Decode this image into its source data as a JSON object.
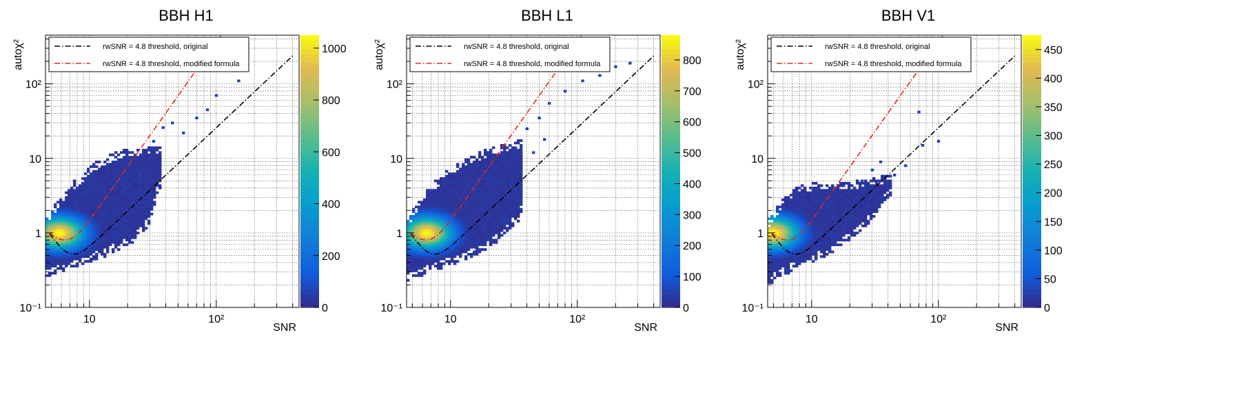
{
  "chart_data": [
    {
      "type": "heatmap",
      "title": "BBH H1",
      "xlabel": "SNR",
      "ylabel": "autoχ²",
      "x_scale": "log",
      "y_scale": "log",
      "xlim": [
        4.5,
        450
      ],
      "ylim": [
        0.1,
        450
      ],
      "x_ticks": [
        "10",
        "10²"
      ],
      "y_ticks": [
        "10⁻¹",
        "1",
        "10",
        "10²"
      ],
      "grid": true,
      "colorbar": {
        "min": 0,
        "max": 1050,
        "ticks": [
          "0",
          "200",
          "400",
          "600",
          "800",
          "1000"
        ]
      },
      "legend": {
        "placement": "top",
        "entries": [
          {
            "label": "rwSNR = 4.8 threshold, original",
            "color": "#000000",
            "style": "dash-dot"
          },
          {
            "label": "rwSNR = 4.8 threshold, modified formula",
            "color": "#e8261c",
            "style": "dash-dot"
          }
        ]
      },
      "density": {
        "peak": {
          "snr": 5.8,
          "autochi2": 1.0,
          "count": 1050
        },
        "upper_envelope": [
          [
            4.5,
            1.5
          ],
          [
            6,
            3.3
          ],
          [
            8,
            5.5
          ],
          [
            12,
            10
          ],
          [
            18,
            13
          ],
          [
            25,
            14
          ],
          [
            35,
            15
          ]
        ],
        "lower_envelope": [
          [
            4.5,
            0.25
          ],
          [
            8,
            0.35
          ],
          [
            14,
            0.5
          ],
          [
            22,
            0.75
          ],
          [
            30,
            1.3
          ],
          [
            35,
            4
          ]
        ],
        "outliers": [
          [
            30,
            14
          ],
          [
            32,
            17
          ],
          [
            38,
            26
          ],
          [
            45,
            30
          ],
          [
            55,
            22
          ],
          [
            70,
            35
          ],
          [
            85,
            45
          ],
          [
            100,
            70
          ],
          [
            150,
            110
          ],
          [
            25,
            6
          ],
          [
            20,
            4
          ]
        ]
      }
    },
    {
      "type": "heatmap",
      "title": "BBH L1",
      "xlabel": "SNR",
      "ylabel": "autoχ²",
      "x_scale": "log",
      "y_scale": "log",
      "xlim": [
        4.5,
        450
      ],
      "ylim": [
        0.1,
        450
      ],
      "x_ticks": [
        "10",
        "10²"
      ],
      "y_ticks": [
        "10⁻¹",
        "1",
        "10",
        "10²"
      ],
      "grid": true,
      "colorbar": {
        "min": 0,
        "max": 880,
        "ticks": [
          "0",
          "100",
          "200",
          "300",
          "400",
          "500",
          "600",
          "700",
          "800"
        ]
      },
      "legend": {
        "placement": "top",
        "entries": [
          {
            "label": "rwSNR = 4.8 threshold, original",
            "color": "#000000",
            "style": "dash-dot"
          },
          {
            "label": "rwSNR = 4.8 threshold, modified formula",
            "color": "#e8261c",
            "style": "dash-dot"
          }
        ]
      },
      "density": {
        "peak": {
          "snr": 6.5,
          "autochi2": 1.0,
          "count": 880
        },
        "upper_envelope": [
          [
            4.5,
            1.5
          ],
          [
            6,
            3.3
          ],
          [
            8,
            5.5
          ],
          [
            12,
            9.5
          ],
          [
            18,
            13
          ],
          [
            25,
            15
          ],
          [
            35,
            18
          ]
        ],
        "lower_envelope": [
          [
            4.5,
            0.22
          ],
          [
            8,
            0.32
          ],
          [
            14,
            0.45
          ],
          [
            22,
            0.7
          ],
          [
            35,
            1.5
          ],
          [
            40,
            4
          ]
        ],
        "outliers": [
          [
            40,
            25
          ],
          [
            50,
            35
          ],
          [
            60,
            55
          ],
          [
            80,
            80
          ],
          [
            110,
            110
          ],
          [
            150,
            130
          ],
          [
            200,
            170
          ],
          [
            260,
            190
          ],
          [
            45,
            12
          ],
          [
            55,
            18
          ]
        ]
      }
    },
    {
      "type": "heatmap",
      "title": "BBH V1",
      "xlabel": "SNR",
      "ylabel": "autoχ²",
      "x_scale": "log",
      "y_scale": "log",
      "xlim": [
        4.5,
        450
      ],
      "ylim": [
        0.1,
        450
      ],
      "x_ticks": [
        "10",
        "10²"
      ],
      "y_ticks": [
        "10⁻¹",
        "1",
        "10",
        "10²"
      ],
      "grid": true,
      "colorbar": {
        "min": 0,
        "max": 475,
        "ticks": [
          "0",
          "50",
          "100",
          "150",
          "200",
          "250",
          "300",
          "350",
          "400",
          "450"
        ]
      },
      "legend": {
        "placement": "top",
        "entries": [
          {
            "label": "rwSNR = 4.8 threshold, original",
            "color": "#000000",
            "style": "dash-dot"
          },
          {
            "label": "rwSNR = 4.8 threshold, modified formula",
            "color": "#e8261c",
            "style": "dash-dot"
          }
        ]
      },
      "density": {
        "peak": {
          "snr": 5.0,
          "autochi2": 1.0,
          "count": 475
        },
        "upper_envelope": [
          [
            4.5,
            1.5
          ],
          [
            6,
            3.0
          ],
          [
            8,
            4.5
          ],
          [
            12,
            5
          ],
          [
            20,
            5
          ],
          [
            30,
            5.5
          ],
          [
            40,
            6
          ]
        ],
        "lower_envelope": [
          [
            4.5,
            0.2
          ],
          [
            8,
            0.35
          ],
          [
            14,
            0.5
          ],
          [
            22,
            0.9
          ],
          [
            30,
            1.5
          ],
          [
            40,
            3
          ]
        ],
        "outliers": [
          [
            30,
            7
          ],
          [
            35,
            9
          ],
          [
            45,
            6
          ],
          [
            55,
            8
          ],
          [
            75,
            15
          ],
          [
            100,
            17
          ],
          [
            70,
            42
          ],
          [
            25,
            5
          ]
        ]
      }
    }
  ]
}
